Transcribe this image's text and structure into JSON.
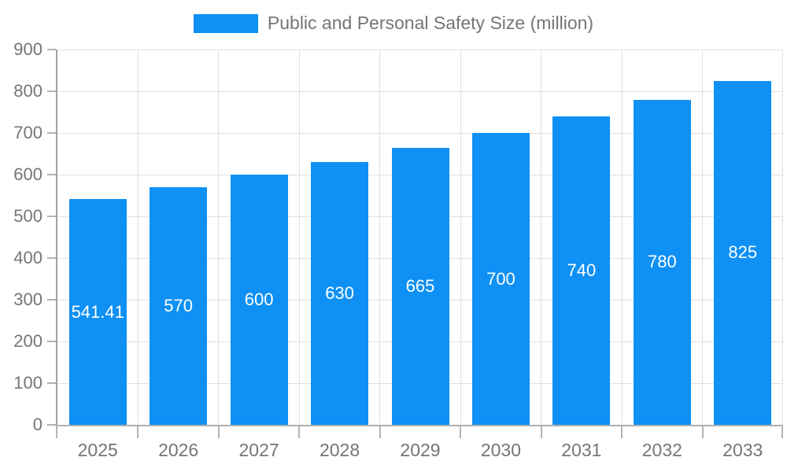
{
  "chart_data": {
    "type": "bar",
    "title": "Public and Personal Safety Size (million)",
    "legend": {
      "label": "Public and Personal Safety Size (million)",
      "position": "top-center"
    },
    "categories": [
      "2025",
      "2026",
      "2027",
      "2028",
      "2029",
      "2030",
      "2031",
      "2032",
      "2033"
    ],
    "series": [
      {
        "name": "Public and Personal Safety Size (million)",
        "values": [
          541.41,
          570,
          600,
          630,
          665,
          700,
          740,
          780,
          825
        ],
        "value_labels": [
          "541.41",
          "570",
          "600",
          "630",
          "665",
          "700",
          "740",
          "780",
          "825"
        ]
      }
    ],
    "xlabel": "",
    "ylabel": "",
    "ylim": [
      0,
      900
    ],
    "ytick_step": 100,
    "yticks": [
      0,
      100,
      200,
      300,
      400,
      500,
      600,
      700,
      800,
      900
    ],
    "grid": true,
    "value_label_position": "inside-center",
    "colors": {
      "bar": "#0e90f5",
      "value_label": "#ffffff",
      "axis_text": "#757575",
      "axis_line": "#a0a0a0",
      "tick": "#b3b3b3",
      "gridline": "#e0e0e0",
      "background": "#ffffff"
    }
  }
}
